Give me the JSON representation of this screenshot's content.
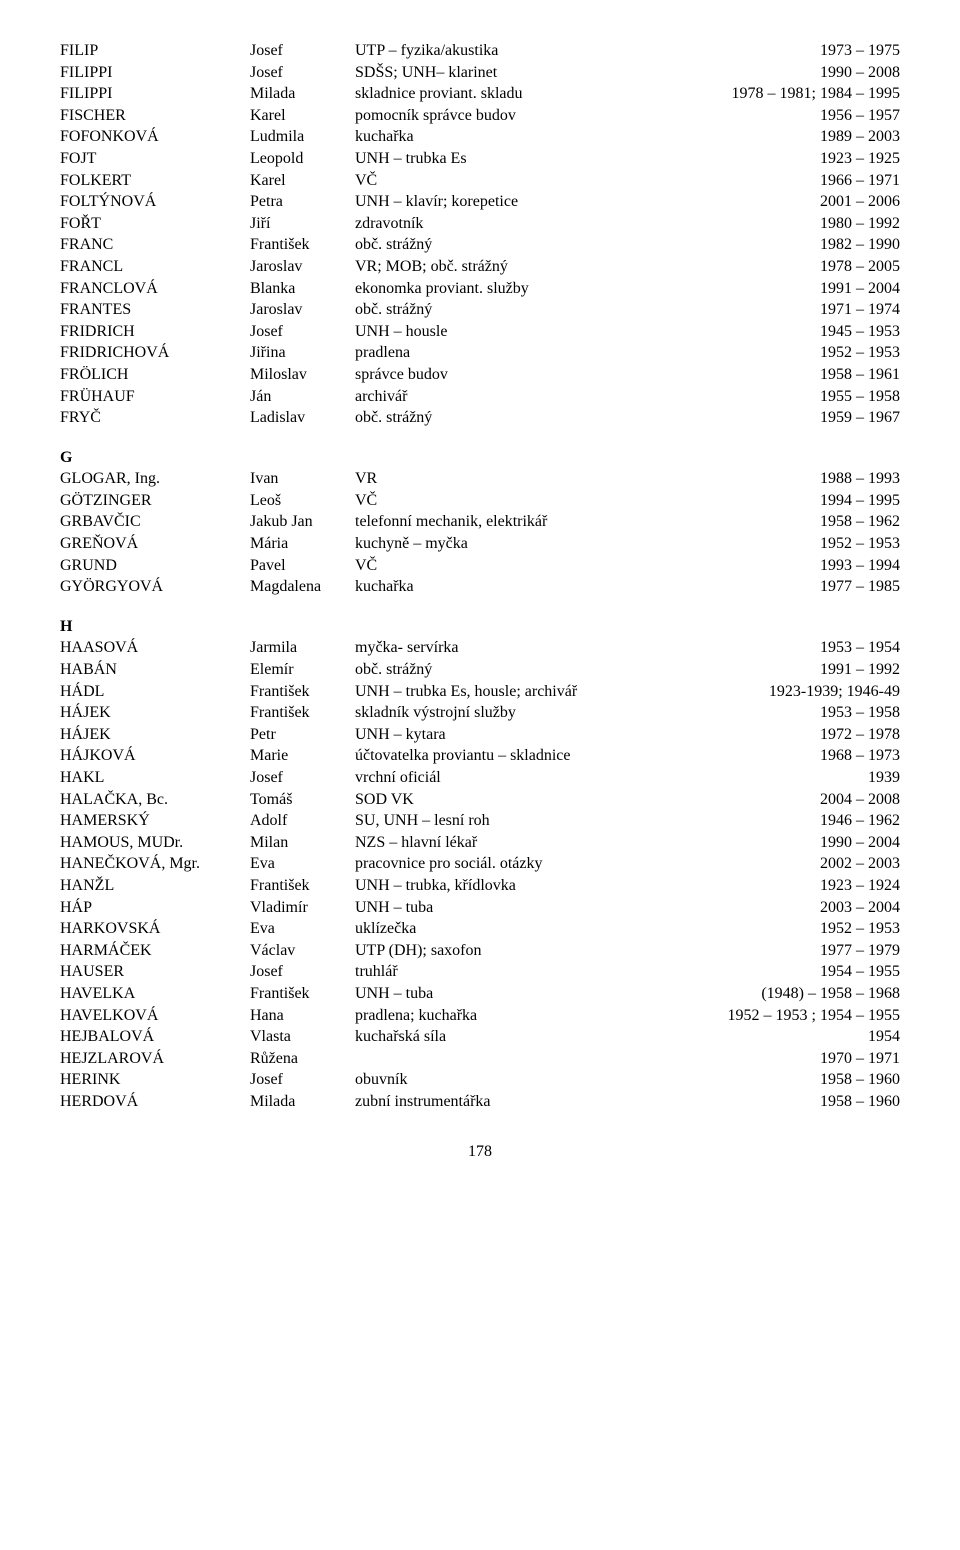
{
  "rows": [
    {
      "s": "FILIP",
      "g": "Josef",
      "r": "UTP – fyzika/akustika",
      "y": "1973 – 1975"
    },
    {
      "s": "FILIPPI",
      "g": "Josef",
      "r": "SDŠS; UNH– klarinet",
      "y": "1990 – 2008"
    },
    {
      "s": "FILIPPI",
      "g": "Milada",
      "r": "skladnice proviant. skladu",
      "y": "1978 – 1981;  1984 – 1995"
    },
    {
      "s": "FISCHER",
      "g": "Karel",
      "r": "pomocník správce budov",
      "y": "1956 – 1957"
    },
    {
      "s": "FOFONKOVÁ",
      "g": "Ludmila",
      "r": "kuchařka",
      "y": "1989 – 2003"
    },
    {
      "s": "FOJT",
      "g": "Leopold",
      "r": "UNH – trubka Es",
      "y": "1923 – 1925"
    },
    {
      "s": "FOLKERT",
      "g": "Karel",
      "r": "VČ",
      "y": "1966 – 1971"
    },
    {
      "s": "FOLTÝNOVÁ",
      "g": "Petra",
      "r": "UNH – klavír; korepetice",
      "y": "2001 – 2006"
    },
    {
      "s": "FOŘT",
      "g": "Jiří",
      "r": "zdravotník",
      "y": "1980 – 1992"
    },
    {
      "s": "FRANC",
      "g": "František",
      "r": "obč. strážný",
      "y": "1982 – 1990"
    },
    {
      "s": "FRANCL",
      "g": "Jaroslav",
      "r": "VR; MOB; obč. strážný",
      "y": "1978 – 2005"
    },
    {
      "s": "FRANCLOVÁ",
      "g": "Blanka",
      "r": "ekonomka proviant. služby",
      "y": "1991 – 2004"
    },
    {
      "s": "FRANTES",
      "g": "Jaroslav",
      "r": "obč. strážný",
      "y": "1971 – 1974"
    },
    {
      "s": "FRIDRICH",
      "g": "Josef",
      "r": "UNH – housle",
      "y": "1945 – 1953"
    },
    {
      "s": "FRIDRICHOVÁ",
      "g": "Jiřina",
      "r": "pradlena",
      "y": "1952 – 1953"
    },
    {
      "s": "FRÖLICH",
      "g": "Miloslav",
      "r": "správce budov",
      "y": "1958 – 1961"
    },
    {
      "s": "FRÜHAUF",
      "g": "Ján",
      "r": "archivář",
      "y": "1955 – 1958"
    },
    {
      "s": "FRYČ",
      "g": "Ladislav",
      "r": "obč. strážný",
      "y": "1959 – 1967"
    }
  ],
  "sectionG": "G",
  "rowsG": [
    {
      "s": "GLOGAR, Ing.",
      "g": "Ivan",
      "r": "VR",
      "y": "1988 – 1993"
    },
    {
      "s": "GÖTZINGER",
      "g": "Leoš",
      "r": "VČ",
      "y": "1994 – 1995"
    },
    {
      "s": "GRBAVČIC",
      "g": "Jakub Jan",
      "r": "telefonní mechanik, elektrikář",
      "y": "1958 – 1962"
    },
    {
      "s": "GREŇOVÁ",
      "g": "Mária",
      "r": "kuchyně – myčka",
      "y": "1952 – 1953"
    },
    {
      "s": "GRUND",
      "g": "Pavel",
      "r": "VČ",
      "y": "1993 – 1994"
    },
    {
      "s": "GYÖRGYOVÁ",
      "g": "Magdalena",
      "r": "kuchařka",
      "y": "1977 – 1985"
    }
  ],
  "sectionH": "H",
  "rowsH": [
    {
      "s": "HAASOVÁ",
      "g": "Jarmila",
      "r": "myčka- servírka",
      "y": "1953 – 1954"
    },
    {
      "s": "HABÁN",
      "g": "Elemír",
      "r": "obč. strážný",
      "y": "1991 – 1992"
    },
    {
      "s": "HÁDL",
      "g": "František",
      "r": "UNH – trubka Es, housle; archivář",
      "y": "1923-1939; 1946-49"
    },
    {
      "s": "HÁJEK",
      "g": "František",
      "r": "skladník výstrojní služby",
      "y": "1953 – 1958"
    },
    {
      "s": "HÁJEK",
      "g": "Petr",
      "r": "UNH – kytara",
      "y": "1972 – 1978"
    },
    {
      "s": "HÁJKOVÁ",
      "g": "Marie",
      "r": "účtovatelka proviantu – skladnice",
      "y": "1968 – 1973"
    },
    {
      "s": "HAKL",
      "g": "Josef",
      "r": "vrchní oficiál",
      "y": "1939"
    },
    {
      "s": "HALAČKA, Bc.",
      "g": "Tomáš",
      "r": "SOD VK",
      "y": "2004 – 2008"
    },
    {
      "s": "HAMERSKÝ",
      "g": "Adolf",
      "r": "SU, UNH – lesní roh",
      "y": "1946 – 1962"
    },
    {
      "s": "HAMOUS, MUDr.",
      "g": "Milan",
      "r": "NZS – hlavní lékař",
      "y": "1990 – 2004"
    },
    {
      "s": "HANEČKOVÁ, Mgr.",
      "g": "Eva",
      "r": "pracovnice pro sociál. otázky",
      "y": "2002 – 2003"
    },
    {
      "s": "HANŽL",
      "g": "František",
      "r": "UNH – trubka, křídlovka",
      "y": "1923 – 1924"
    },
    {
      "s": "HÁP",
      "g": "Vladimír",
      "r": "UNH – tuba",
      "y": "2003 – 2004"
    },
    {
      "s": "HARKOVSKÁ",
      "g": "Eva",
      "r": "uklízečka",
      "y": "1952 – 1953"
    },
    {
      "s": "HARMÁČEK",
      "g": "Václav",
      "r": "UTP (DH); saxofon",
      "y": "1977 – 1979"
    },
    {
      "s": "HAUSER",
      "g": "Josef",
      "r": "truhlář",
      "y": "1954 – 1955"
    },
    {
      "s": "HAVELKA",
      "g": "František",
      "r": "UNH – tuba",
      "y": "(1948) – 1958 – 1968"
    },
    {
      "s": "HAVELKOVÁ",
      "g": "Hana",
      "r": "pradlena; kuchařka",
      "y": "1952 – 1953 ; 1954 – 1955"
    },
    {
      "s": "HEJBALOVÁ",
      "g": "Vlasta",
      "r": "kuchařská síla",
      "y": "1954"
    },
    {
      "s": "HEJZLAROVÁ",
      "g": "Růžena",
      "r": "",
      "y": "1970 – 1971"
    },
    {
      "s": "HERINK",
      "g": "Josef",
      "r": "obuvník",
      "y": "1958 – 1960"
    },
    {
      "s": "HERDOVÁ",
      "g": "Milada",
      "r": "zubní instrumentářka",
      "y": "1958 – 1960"
    }
  ],
  "page": "178"
}
